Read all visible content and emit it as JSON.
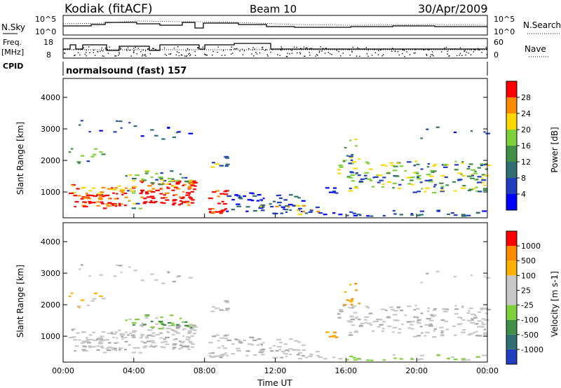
{
  "header": {
    "site": "Kodiak (fitACF)",
    "beam": "Beam 10",
    "date": "30/Apr/2009"
  },
  "nsky_panel": {
    "left_label": "N.Sky",
    "right_label": "N.Search",
    "left_ticks": [
      "10^5",
      "10^0"
    ],
    "right_ticks": [
      "10^5",
      "10^0"
    ]
  },
  "freq_panel": {
    "left_label": "Freq.",
    "left_unit": "[MHz]",
    "right_label": "Nave",
    "left_ticks": [
      "18",
      "8"
    ],
    "right_ticks": [
      "60",
      "0"
    ]
  },
  "cpid": {
    "label": "CPID",
    "value": "normalsound (fast) 157"
  },
  "colors": {
    "red": "#ff0000",
    "orange": "#ff8c00",
    "amber": "#ffb000",
    "yellow": "#ffd700",
    "lime": "#7fd13b",
    "green": "#3f8f46",
    "teal": "#2f6f6f",
    "blue": "#1f3fbf",
    "gray": "#c8c8c8"
  },
  "chart_data": [
    {
      "type": "heatmap",
      "title": "",
      "quantity": "Power",
      "xlabel": "",
      "ylabel": "Slant Range [km]",
      "x_ticks": [
        "00:00",
        "04:00",
        "08:00",
        "12:00",
        "16:00",
        "20:00",
        "00:00"
      ],
      "y_ticks": [
        "1000",
        "2000",
        "3000",
        "4000"
      ],
      "xlim_hours": [
        0,
        24
      ],
      "ylim_km": [
        180,
        4600
      ],
      "colorbar": {
        "label": "Power [dB]",
        "ticks": [
          "4",
          "8",
          "12",
          "16",
          "20",
          "24",
          "28"
        ],
        "colors": [
          "#0000ff",
          "#1f3fbf",
          "#2f6f6f",
          "#3f8f46",
          "#7fd13b",
          "#ffd700",
          "#ff8c00",
          "#ff0000"
        ]
      }
    },
    {
      "type": "heatmap",
      "title": "",
      "quantity": "Velocity",
      "xlabel": "Time UT",
      "ylabel": "Slant Range [km]",
      "x_ticks": [
        "00:00",
        "04:00",
        "08:00",
        "12:00",
        "16:00",
        "20:00",
        "00:00"
      ],
      "y_ticks": [
        "1000",
        "2000",
        "3000",
        "4000"
      ],
      "xlim_hours": [
        0,
        24
      ],
      "ylim_km": [
        180,
        4600
      ],
      "colorbar": {
        "label": "Velocity [m s-1]",
        "ticks": [
          "1000",
          "500",
          "100",
          "25",
          "-25",
          "-100",
          "-500",
          "-1000"
        ],
        "colors": [
          "#1f3fbf",
          "#2f6f6f",
          "#3f8f46",
          "#7fd13b",
          "#c8c8c8",
          "#c8c8c8",
          "#ffb000",
          "#ff8c00",
          "#ff0000"
        ]
      }
    }
  ]
}
